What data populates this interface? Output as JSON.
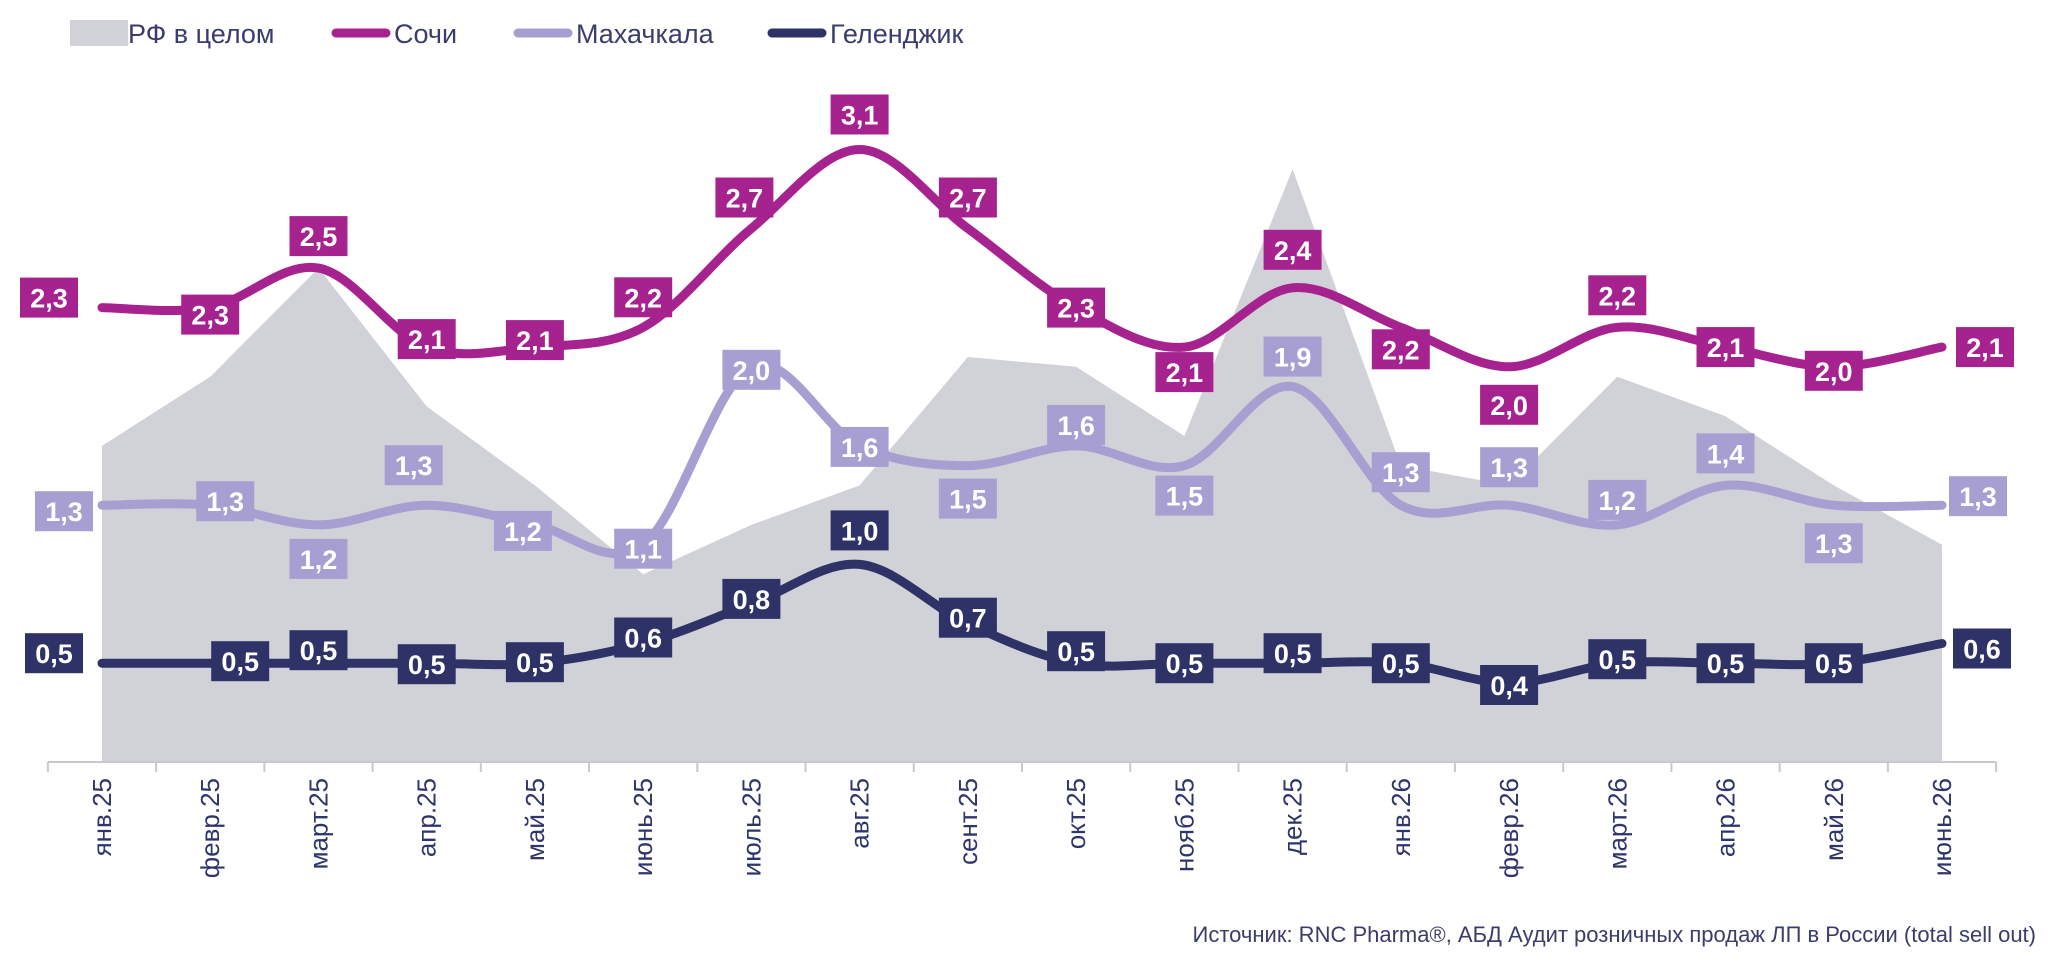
{
  "chart_data": {
    "type": "line",
    "categories": [
      "янв.25",
      "февр.25",
      "март.25",
      "апр.25",
      "май.25",
      "июнь.25",
      "июль.25",
      "авг.25",
      "сент.25",
      "окт.25",
      "нояб.25",
      "дек.25",
      "янв.26",
      "февр.26",
      "март.26",
      "апр.26",
      "май.26",
      "июнь.26"
    ],
    "series": [
      {
        "name": "РФ в целом",
        "render": "area",
        "color": "#d1d1d8",
        "values": [
          1.6,
          1.95,
          2.5,
          1.8,
          1.4,
          0.95,
          1.2,
          1.4,
          2.05,
          2.0,
          1.65,
          3.0,
          1.5,
          1.4,
          1.95,
          1.75,
          1.4,
          1.1
        ],
        "labels": []
      },
      {
        "name": "Сочи",
        "render": "line",
        "color": "#a6238f",
        "values": [
          2.3,
          2.3,
          2.5,
          2.1,
          2.1,
          2.2,
          2.7,
          3.1,
          2.7,
          2.3,
          2.1,
          2.4,
          2.2,
          2.0,
          2.2,
          2.1,
          2.0,
          2.1
        ],
        "labels": [
          "2,3",
          "2,3",
          "2,5",
          "2,1",
          "2,1",
          "2,2",
          "2,7",
          "3,1",
          "2,7",
          "2,3",
          "2,1",
          "2,4",
          "2,2",
          "2,0",
          "2,2",
          "2,1",
          "2,0",
          "2,1"
        ]
      },
      {
        "name": "Махачкала",
        "render": "line",
        "color": "#a79fd1",
        "values": [
          1.3,
          1.3,
          1.2,
          1.3,
          1.2,
          1.1,
          2.0,
          1.6,
          1.5,
          1.6,
          1.5,
          1.9,
          1.3,
          1.3,
          1.2,
          1.4,
          1.3,
          1.3
        ],
        "labels": [
          "1,3",
          "1,3",
          "1,2",
          "1,3",
          "1,2",
          "1,1",
          "2,0",
          "1,6",
          "1,5",
          "1,6",
          "1,5",
          "1,9",
          "1,3",
          "1,3",
          "1,2",
          "1,4",
          "1,3",
          "1,3"
        ]
      },
      {
        "name": "Геленджик",
        "render": "line",
        "color": "#2e3266",
        "values": [
          0.5,
          0.5,
          0.5,
          0.5,
          0.5,
          0.6,
          0.8,
          1.0,
          0.7,
          0.5,
          0.5,
          0.5,
          0.5,
          0.4,
          0.5,
          0.5,
          0.5,
          0.6
        ],
        "labels": [
          "0,5",
          "0,5",
          "0,5",
          "0,5",
          "0,5",
          "0,6",
          "0,8",
          "1,0",
          "0,7",
          "0,5",
          "0,5",
          "0,5",
          "0,5",
          "0,4",
          "0,5",
          "0,5",
          "0,5",
          "0,6"
        ]
      }
    ],
    "ylim": [
      0,
      3.3
    ],
    "legend": "top-left",
    "grid": false,
    "source": "Источник: RNC Pharma®, АБД Аудит розничных продаж ЛП в России (total sell out)"
  }
}
